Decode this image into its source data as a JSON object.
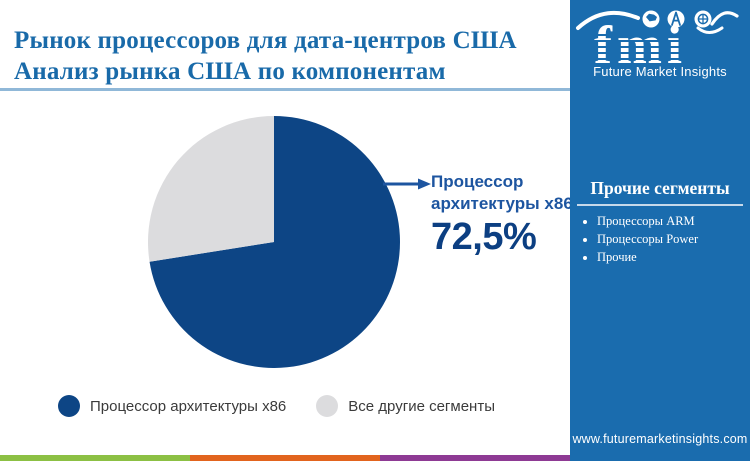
{
  "title": {
    "line1": "Рынок процессоров для дата-центров США",
    "line2": "Анализ рынка США по компонентам"
  },
  "logo": {
    "text": "fmi",
    "subtext": "Future Market Insights",
    "icons": [
      "usa-map-icon",
      "compass-icon",
      "globe-icon"
    ]
  },
  "chart_data": {
    "type": "pie",
    "title": "Рынок процессоров для дата-центров США — Анализ рынка США по компонентам",
    "categories": [
      "Процессор архитектуры x86",
      "Все другие сегменты"
    ],
    "values": [
      72.5,
      27.5
    ],
    "colors": [
      "#0d4585",
      "#dcdcde"
    ],
    "start_angle": "top",
    "direction": "clockwise",
    "legend_position": "bottom",
    "callout": {
      "label_line1": "Процессор",
      "label_line2": "архитектуры x86",
      "value": "72,5%"
    },
    "legend": [
      {
        "label": "Процессор архитектуры x86",
        "color": "#0d4585"
      },
      {
        "label": "Все другие сегменты",
        "color": "#dcdcde"
      }
    ]
  },
  "sidebar": {
    "header": "Прочие сегменты",
    "items": [
      "Процессоры ARM",
      "Процессоры Power",
      "Прочие"
    ],
    "url": "www.futuremarketinsights.com",
    "bg": "#1a6cae"
  },
  "colors": {
    "title_blue": "#196aa9",
    "callout_label_blue": "#1d55a0",
    "callout_value_navy": "#0c3f82",
    "title_rule": "#90b8d8"
  },
  "footer_stripes": [
    "#8cc044",
    "#e2641e",
    "#8e3a94"
  ]
}
